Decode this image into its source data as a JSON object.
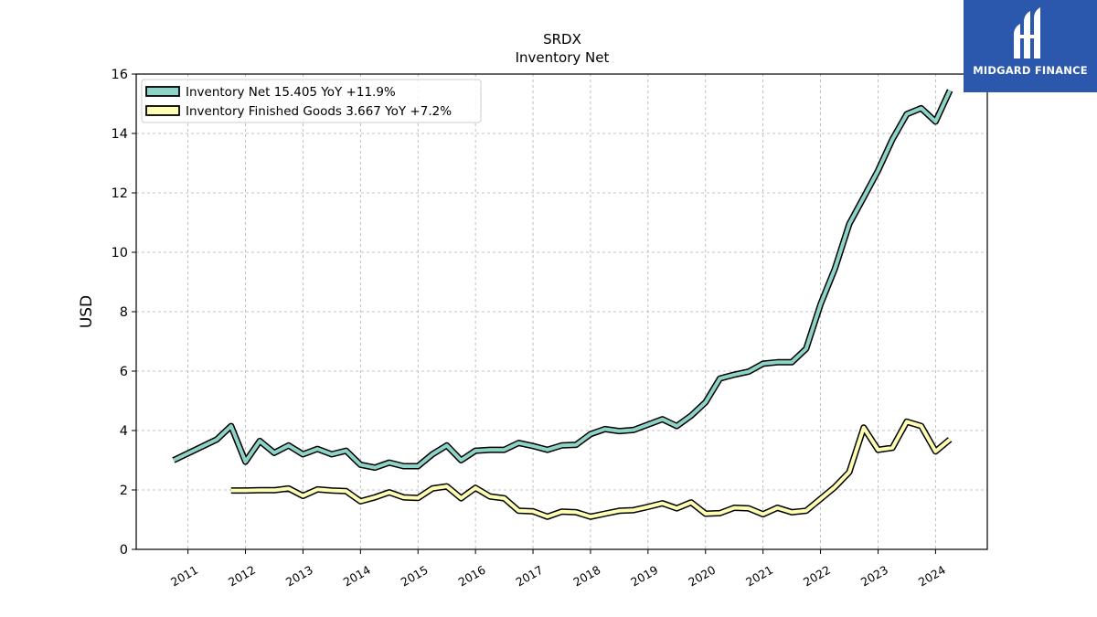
{
  "chart_data": {
    "type": "line",
    "title": "SRDX",
    "subtitle": "Inventory Net",
    "xlabel": "",
    "ylabel": "USD",
    "ylim": [
      0,
      16
    ],
    "yticks": [
      0,
      2,
      4,
      6,
      8,
      10,
      12,
      14,
      16
    ],
    "xlim": [
      2010.1,
      2024.9
    ],
    "xticks": [
      2011,
      2012,
      2013,
      2014,
      2015,
      2016,
      2017,
      2018,
      2019,
      2020,
      2021,
      2022,
      2023,
      2024
    ],
    "grid": true,
    "legend_position": "top-left",
    "series": [
      {
        "name": "Inventory Net  15.405 YoY +11.9%",
        "color": "#8dd3c7",
        "points": [
          [
            2010.75,
            3.0
          ],
          [
            2011.5,
            3.7
          ],
          [
            2011.75,
            4.15
          ],
          [
            2012.0,
            2.95
          ],
          [
            2012.25,
            3.65
          ],
          [
            2012.5,
            3.25
          ],
          [
            2012.75,
            3.5
          ],
          [
            2013.0,
            3.2
          ],
          [
            2013.25,
            3.38
          ],
          [
            2013.5,
            3.2
          ],
          [
            2013.75,
            3.32
          ],
          [
            2014.0,
            2.85
          ],
          [
            2014.25,
            2.75
          ],
          [
            2014.5,
            2.92
          ],
          [
            2014.75,
            2.8
          ],
          [
            2015.0,
            2.8
          ],
          [
            2015.25,
            3.2
          ],
          [
            2015.5,
            3.5
          ],
          [
            2015.75,
            3.0
          ],
          [
            2016.0,
            3.32
          ],
          [
            2016.25,
            3.35
          ],
          [
            2016.5,
            3.35
          ],
          [
            2016.75,
            3.58
          ],
          [
            2017.0,
            3.48
          ],
          [
            2017.25,
            3.35
          ],
          [
            2017.5,
            3.5
          ],
          [
            2017.75,
            3.52
          ],
          [
            2018.0,
            3.88
          ],
          [
            2018.25,
            4.05
          ],
          [
            2018.5,
            3.98
          ],
          [
            2018.75,
            4.02
          ],
          [
            2019.0,
            4.2
          ],
          [
            2019.25,
            4.38
          ],
          [
            2019.5,
            4.15
          ],
          [
            2019.75,
            4.5
          ],
          [
            2020.0,
            4.95
          ],
          [
            2020.25,
            5.75
          ],
          [
            2020.5,
            5.88
          ],
          [
            2020.75,
            5.98
          ],
          [
            2021.0,
            6.25
          ],
          [
            2021.25,
            6.3
          ],
          [
            2021.5,
            6.3
          ],
          [
            2021.75,
            6.75
          ],
          [
            2022.0,
            8.25
          ],
          [
            2022.25,
            9.45
          ],
          [
            2022.5,
            10.95
          ],
          [
            2022.75,
            11.85
          ],
          [
            2023.0,
            12.75
          ],
          [
            2023.25,
            13.8
          ],
          [
            2023.5,
            14.65
          ],
          [
            2023.75,
            14.85
          ],
          [
            2024.0,
            14.4
          ],
          [
            2024.25,
            15.45
          ]
        ]
      },
      {
        "name": "Inventory Finished Goods  3.667 YoY +7.2%",
        "color": "#ffffb3",
        "points": [
          [
            2011.75,
            1.98
          ],
          [
            2012.0,
            1.98
          ],
          [
            2012.25,
            1.99
          ],
          [
            2012.5,
            1.99
          ],
          [
            2012.75,
            2.05
          ],
          [
            2013.0,
            1.8
          ],
          [
            2013.25,
            2.02
          ],
          [
            2013.5,
            1.98
          ],
          [
            2013.75,
            1.96
          ],
          [
            2014.0,
            1.62
          ],
          [
            2014.25,
            1.75
          ],
          [
            2014.5,
            1.92
          ],
          [
            2014.75,
            1.75
          ],
          [
            2015.0,
            1.73
          ],
          [
            2015.25,
            2.05
          ],
          [
            2015.5,
            2.12
          ],
          [
            2015.75,
            1.72
          ],
          [
            2016.0,
            2.07
          ],
          [
            2016.25,
            1.78
          ],
          [
            2016.5,
            1.72
          ],
          [
            2016.75,
            1.3
          ],
          [
            2017.0,
            1.28
          ],
          [
            2017.25,
            1.1
          ],
          [
            2017.5,
            1.27
          ],
          [
            2017.75,
            1.25
          ],
          [
            2018.0,
            1.1
          ],
          [
            2018.25,
            1.2
          ],
          [
            2018.5,
            1.3
          ],
          [
            2018.75,
            1.32
          ],
          [
            2019.0,
            1.43
          ],
          [
            2019.25,
            1.55
          ],
          [
            2019.5,
            1.38
          ],
          [
            2019.75,
            1.58
          ],
          [
            2020.0,
            1.2
          ],
          [
            2020.25,
            1.22
          ],
          [
            2020.5,
            1.4
          ],
          [
            2020.75,
            1.38
          ],
          [
            2021.0,
            1.18
          ],
          [
            2021.25,
            1.4
          ],
          [
            2021.5,
            1.25
          ],
          [
            2021.75,
            1.3
          ],
          [
            2022.0,
            1.7
          ],
          [
            2022.25,
            2.1
          ],
          [
            2022.5,
            2.6
          ],
          [
            2022.75,
            4.1
          ],
          [
            2023.0,
            3.35
          ],
          [
            2023.25,
            3.42
          ],
          [
            2023.5,
            4.3
          ],
          [
            2023.75,
            4.15
          ],
          [
            2024.0,
            3.3
          ],
          [
            2024.25,
            3.7
          ]
        ]
      }
    ]
  },
  "logo": {
    "text": "MIDGARD FINANCE",
    "color": "#2b58ac"
  }
}
